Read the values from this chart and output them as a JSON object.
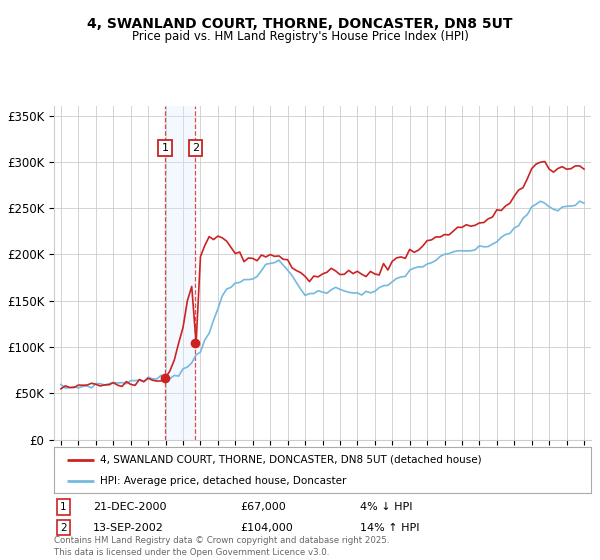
{
  "title_line1": "4, SWANLAND COURT, THORNE, DONCASTER, DN8 5UT",
  "title_line2": "Price paid vs. HM Land Registry's House Price Index (HPI)",
  "ylim": [
    0,
    360000
  ],
  "yticks": [
    0,
    50000,
    100000,
    150000,
    200000,
    250000,
    300000,
    350000
  ],
  "ytick_labels": [
    "£0",
    "£50K",
    "£100K",
    "£150K",
    "£200K",
    "£250K",
    "£300K",
    "£350K"
  ],
  "xlim_start": 1994.6,
  "xlim_end": 2025.4,
  "sale1_date": 2000.97,
  "sale1_price": 67000,
  "sale2_date": 2002.71,
  "sale2_price": 104000,
  "sale1_info": "21-DEC-2000",
  "sale1_amount": "£67,000",
  "sale1_hpi": "4% ↓ HPI",
  "sale2_info": "13-SEP-2002",
  "sale2_amount": "£104,000",
  "sale2_hpi": "14% ↑ HPI",
  "hpi_color": "#74b9e0",
  "property_color": "#cc2222",
  "shade_color": "#ddeeff",
  "legend_label_property": "4, SWANLAND COURT, THORNE, DONCASTER, DN8 5UT (detached house)",
  "legend_label_hpi": "HPI: Average price, detached house, Doncaster",
  "footer": "Contains HM Land Registry data © Crown copyright and database right 2025.\nThis data is licensed under the Open Government Licence v3.0.",
  "background_color": "#ffffff",
  "grid_color": "#cccccc",
  "years_hpi": [
    1995.0,
    1995.25,
    1995.5,
    1995.75,
    1996.0,
    1996.25,
    1996.5,
    1996.75,
    1997.0,
    1997.25,
    1997.5,
    1997.75,
    1998.0,
    1998.25,
    1998.5,
    1998.75,
    1999.0,
    1999.25,
    1999.5,
    1999.75,
    2000.0,
    2000.25,
    2000.5,
    2000.75,
    2001.0,
    2001.25,
    2001.5,
    2001.75,
    2002.0,
    2002.25,
    2002.5,
    2002.75,
    2003.0,
    2003.25,
    2003.5,
    2003.75,
    2004.0,
    2004.25,
    2004.5,
    2004.75,
    2005.0,
    2005.25,
    2005.5,
    2005.75,
    2006.0,
    2006.25,
    2006.5,
    2006.75,
    2007.0,
    2007.25,
    2007.5,
    2007.75,
    2008.0,
    2008.25,
    2008.5,
    2008.75,
    2009.0,
    2009.25,
    2009.5,
    2009.75,
    2010.0,
    2010.25,
    2010.5,
    2010.75,
    2011.0,
    2011.25,
    2011.5,
    2011.75,
    2012.0,
    2012.25,
    2012.5,
    2012.75,
    2013.0,
    2013.25,
    2013.5,
    2013.75,
    2014.0,
    2014.25,
    2014.5,
    2014.75,
    2015.0,
    2015.25,
    2015.5,
    2015.75,
    2016.0,
    2016.25,
    2016.5,
    2016.75,
    2017.0,
    2017.25,
    2017.5,
    2017.75,
    2018.0,
    2018.25,
    2018.5,
    2018.75,
    2019.0,
    2019.25,
    2019.5,
    2019.75,
    2020.0,
    2020.25,
    2020.5,
    2020.75,
    2021.0,
    2021.25,
    2021.5,
    2021.75,
    2022.0,
    2022.25,
    2022.5,
    2022.75,
    2023.0,
    2023.25,
    2023.5,
    2023.75,
    2024.0,
    2024.25,
    2024.5,
    2024.75,
    2025.0
  ],
  "hpi_values": [
    57000,
    56500,
    56000,
    56500,
    57000,
    57500,
    58000,
    58500,
    59000,
    59500,
    60000,
    60500,
    61000,
    61500,
    62000,
    62500,
    63000,
    63500,
    64000,
    64500,
    65000,
    65500,
    66000,
    66500,
    67000,
    68000,
    70000,
    72000,
    75000,
    79000,
    84000,
    90000,
    97000,
    107000,
    118000,
    130000,
    143000,
    153000,
    160000,
    165000,
    168000,
    170000,
    172000,
    174000,
    176000,
    179000,
    182000,
    186000,
    190000,
    192000,
    191000,
    188000,
    183000,
    177000,
    170000,
    163000,
    158000,
    157000,
    158000,
    159000,
    160000,
    161000,
    162000,
    162000,
    163000,
    162000,
    161000,
    160000,
    159000,
    158000,
    158000,
    159000,
    160000,
    162000,
    164000,
    167000,
    170000,
    173000,
    176000,
    179000,
    182000,
    184000,
    186000,
    188000,
    190000,
    192000,
    194000,
    196000,
    198000,
    200000,
    202000,
    203000,
    204000,
    204000,
    205000,
    205000,
    206000,
    207000,
    209000,
    212000,
    215000,
    218000,
    221000,
    225000,
    228000,
    232000,
    237000,
    243000,
    249000,
    255000,
    258000,
    255000,
    250000,
    248000,
    249000,
    251000,
    252000,
    253000,
    254000,
    255000,
    256000
  ],
  "prop_values": [
    57000,
    56500,
    56000,
    56500,
    57000,
    57500,
    58000,
    58500,
    59000,
    59500,
    60000,
    60500,
    61000,
    61500,
    62000,
    62500,
    63000,
    63500,
    64000,
    64500,
    65000,
    65500,
    66000,
    66500,
    67000,
    75000,
    88000,
    105000,
    125000,
    150000,
    170000,
    185000,
    196000,
    207000,
    215000,
    220000,
    218000,
    215000,
    212000,
    210000,
    200000,
    198000,
    196000,
    195000,
    193000,
    195000,
    198000,
    200000,
    202000,
    200000,
    198000,
    195000,
    192000,
    188000,
    183000,
    178000,
    175000,
    174000,
    175000,
    177000,
    178000,
    180000,
    182000,
    182000,
    183000,
    182000,
    181000,
    180000,
    179000,
    178000,
    178000,
    179000,
    181000,
    183000,
    185000,
    188000,
    191000,
    194000,
    197000,
    200000,
    203000,
    206000,
    208000,
    210000,
    213000,
    215000,
    217000,
    220000,
    222000,
    224000,
    226000,
    228000,
    230000,
    231000,
    232000,
    233000,
    234000,
    235000,
    237000,
    240000,
    244000,
    248000,
    253000,
    258000,
    263000,
    268000,
    274000,
    282000,
    291000,
    298000,
    301000,
    298000,
    292000,
    288000,
    290000,
    292000,
    293000,
    294000,
    295000,
    296000,
    297000
  ]
}
